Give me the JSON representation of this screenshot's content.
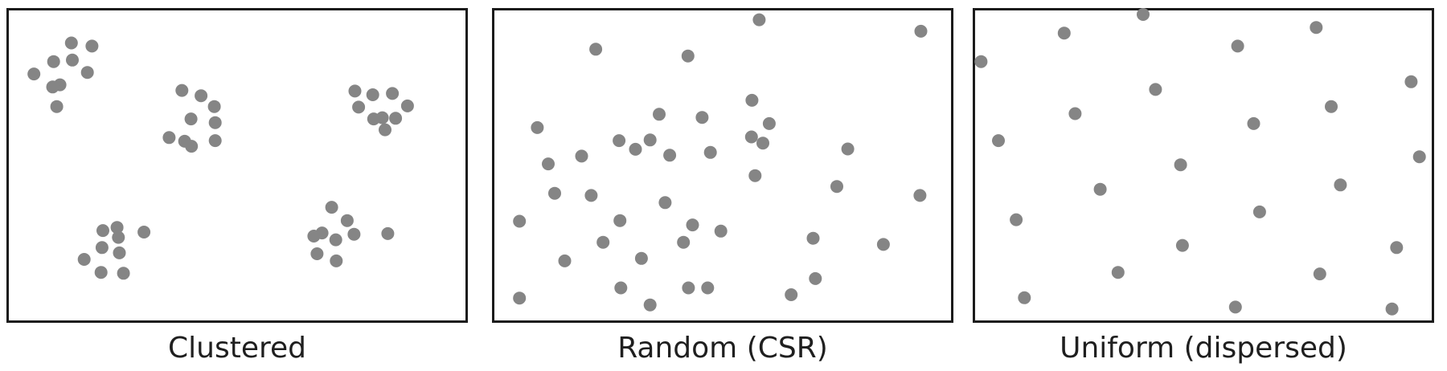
{
  "dot_color": "#858585",
  "border_color": "#1b1b1b",
  "panels": [
    {
      "caption": "Clustered",
      "points": [
        [
          0.137,
          0.105
        ],
        [
          0.182,
          0.115
        ],
        [
          0.098,
          0.165
        ],
        [
          0.139,
          0.16
        ],
        [
          0.055,
          0.205
        ],
        [
          0.172,
          0.2
        ],
        [
          0.112,
          0.24
        ],
        [
          0.096,
          0.247
        ],
        [
          0.105,
          0.31
        ],
        [
          0.379,
          0.258
        ],
        [
          0.421,
          0.275
        ],
        [
          0.45,
          0.31
        ],
        [
          0.399,
          0.35
        ],
        [
          0.452,
          0.362
        ],
        [
          0.351,
          0.41
        ],
        [
          0.385,
          0.422
        ],
        [
          0.4,
          0.438
        ],
        [
          0.452,
          0.42
        ],
        [
          0.758,
          0.26
        ],
        [
          0.797,
          0.272
        ],
        [
          0.84,
          0.268
        ],
        [
          0.766,
          0.312
        ],
        [
          0.873,
          0.308
        ],
        [
          0.799,
          0.35
        ],
        [
          0.818,
          0.346
        ],
        [
          0.847,
          0.348
        ],
        [
          0.824,
          0.385
        ],
        [
          0.707,
          0.635
        ],
        [
          0.741,
          0.678
        ],
        [
          0.686,
          0.718
        ],
        [
          0.668,
          0.728
        ],
        [
          0.756,
          0.722
        ],
        [
          0.716,
          0.74
        ],
        [
          0.83,
          0.72
        ],
        [
          0.675,
          0.785
        ],
        [
          0.717,
          0.808
        ],
        [
          0.206,
          0.71
        ],
        [
          0.237,
          0.7
        ],
        [
          0.24,
          0.732
        ],
        [
          0.296,
          0.715
        ],
        [
          0.204,
          0.765
        ],
        [
          0.242,
          0.782
        ],
        [
          0.165,
          0.803
        ],
        [
          0.202,
          0.845
        ],
        [
          0.251,
          0.848
        ]
      ]
    },
    {
      "caption": "Random (CSR)",
      "points": [
        [
          0.58,
          0.03
        ],
        [
          0.934,
          0.067
        ],
        [
          0.222,
          0.125
        ],
        [
          0.424,
          0.147
        ],
        [
          0.564,
          0.29
        ],
        [
          0.094,
          0.378
        ],
        [
          0.361,
          0.335
        ],
        [
          0.455,
          0.345
        ],
        [
          0.602,
          0.365
        ],
        [
          0.273,
          0.42
        ],
        [
          0.309,
          0.448
        ],
        [
          0.341,
          0.418
        ],
        [
          0.384,
          0.467
        ],
        [
          0.563,
          0.408
        ],
        [
          0.588,
          0.428
        ],
        [
          0.473,
          0.458
        ],
        [
          0.774,
          0.447
        ],
        [
          0.191,
          0.47
        ],
        [
          0.118,
          0.495
        ],
        [
          0.571,
          0.533
        ],
        [
          0.132,
          0.59
        ],
        [
          0.212,
          0.597
        ],
        [
          0.374,
          0.62
        ],
        [
          0.75,
          0.568
        ],
        [
          0.932,
          0.597
        ],
        [
          0.055,
          0.68
        ],
        [
          0.275,
          0.678
        ],
        [
          0.434,
          0.692
        ],
        [
          0.496,
          0.712
        ],
        [
          0.238,
          0.748
        ],
        [
          0.414,
          0.748
        ],
        [
          0.698,
          0.735
        ],
        [
          0.852,
          0.755
        ],
        [
          0.154,
          0.808
        ],
        [
          0.322,
          0.8
        ],
        [
          0.703,
          0.865
        ],
        [
          0.277,
          0.895
        ],
        [
          0.425,
          0.895
        ],
        [
          0.467,
          0.895
        ],
        [
          0.65,
          0.917
        ],
        [
          0.055,
          0.928
        ],
        [
          0.341,
          0.95
        ]
      ]
    },
    {
      "caption": "Uniform (dispersed)",
      "points": [
        [
          0.368,
          0.013
        ],
        [
          0.195,
          0.073
        ],
        [
          0.575,
          0.115
        ],
        [
          0.747,
          0.055
        ],
        [
          0.955,
          0.23
        ],
        [
          0.013,
          0.165
        ],
        [
          0.395,
          0.255
        ],
        [
          0.219,
          0.333
        ],
        [
          0.61,
          0.365
        ],
        [
          0.78,
          0.31
        ],
        [
          0.051,
          0.42
        ],
        [
          0.973,
          0.472
        ],
        [
          0.45,
          0.498
        ],
        [
          0.274,
          0.577
        ],
        [
          0.8,
          0.563
        ],
        [
          0.623,
          0.65
        ],
        [
          0.09,
          0.675
        ],
        [
          0.454,
          0.758
        ],
        [
          0.923,
          0.765
        ],
        [
          0.313,
          0.845
        ],
        [
          0.755,
          0.85
        ],
        [
          0.108,
          0.927
        ],
        [
          0.57,
          0.957
        ],
        [
          0.913,
          0.963
        ]
      ]
    }
  ]
}
